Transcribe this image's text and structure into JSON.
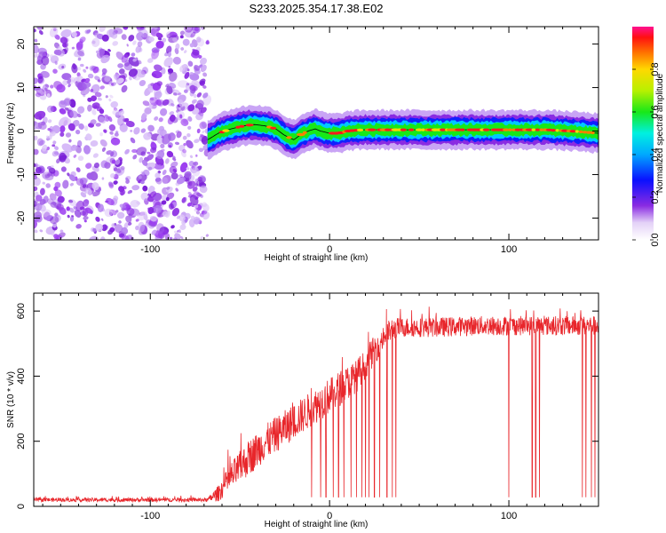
{
  "chart_data": [
    {
      "type": "heatmap",
      "title": "S233.2025.354.17.38.E02",
      "xlabel": "Height of straight line (km)",
      "ylabel": "Frequency (Hz)",
      "xlim": [
        -165,
        150
      ],
      "ylim": [
        -25,
        24
      ],
      "xticks": [
        -100,
        0,
        100
      ],
      "xtick_labels": [
        "-100",
        "0",
        "100"
      ],
      "yticks": [
        -20,
        -10,
        0,
        10,
        20
      ],
      "ytick_labels": [
        "-20",
        "-10",
        "0",
        "10",
        "20"
      ],
      "noise_region_x": [
        -165,
        -68
      ],
      "ridge": {
        "x": [
          -68,
          -62,
          -55,
          -48,
          -42,
          -36,
          -30,
          -25,
          -20,
          -16,
          -12,
          -8,
          -5,
          0,
          5,
          10,
          15,
          20,
          30,
          40,
          60,
          80,
          100,
          120,
          135,
          150
        ],
        "freq": [
          -2,
          -0.5,
          0.5,
          1.2,
          1.5,
          1.2,
          0.5,
          -1,
          -2,
          -0.8,
          0,
          0.5,
          0,
          -0.5,
          -0.5,
          0,
          0.2,
          0.3,
          0.3,
          0.3,
          0.3,
          0.3,
          0.3,
          0.3,
          0,
          -0.5
        ]
      },
      "colorbar": {
        "label": "Normalized spectral amplitude",
        "ticks": [
          0.0,
          0.2,
          0.4,
          0.6,
          0.8
        ],
        "tick_labels": [
          "0.0",
          "0.2",
          "0.4",
          "0.6",
          "0.8"
        ],
        "range": [
          0,
          1
        ]
      },
      "colors": {
        "noise": "#8a2be2",
        "ridge_peak": "#e8101c"
      }
    },
    {
      "type": "line",
      "xlabel": "Height of straight line (km)",
      "ylabel": "SNR (10 * v/v)",
      "xlim": [
        -165,
        150
      ],
      "ylim": [
        0,
        655
      ],
      "xticks": [
        -100,
        0,
        100
      ],
      "xtick_labels": [
        "-100",
        "0",
        "100"
      ],
      "yticks": [
        0,
        200,
        400,
        600
      ],
      "ytick_labels": [
        "0",
        "200",
        "400",
        "600"
      ],
      "series": [
        {
          "name": "SNR",
          "color": "#e8262b",
          "envelope_x": [
            -165,
            -68,
            -62,
            -55,
            -45,
            -35,
            -25,
            -15,
            -5,
            5,
            15,
            25,
            30,
            35,
            40,
            60,
            80,
            100,
            120,
            150
          ],
          "envelope_mean": [
            20,
            20,
            40,
            90,
            150,
            200,
            240,
            280,
            320,
            360,
            400,
            480,
            520,
            545,
            550,
            550,
            555,
            555,
            555,
            555
          ],
          "envelope_spread": [
            6,
            6,
            25,
            45,
            55,
            55,
            55,
            55,
            55,
            55,
            50,
            45,
            40,
            35,
            30,
            30,
            30,
            30,
            30,
            30
          ],
          "dropouts_x": [
            -10,
            -5,
            -2,
            2,
            5,
            8,
            12,
            15,
            18,
            20,
            22,
            25,
            28,
            32,
            35,
            37,
            100,
            113,
            115,
            117,
            141,
            143,
            146,
            148
          ],
          "dropout_level": 28
        }
      ]
    }
  ]
}
